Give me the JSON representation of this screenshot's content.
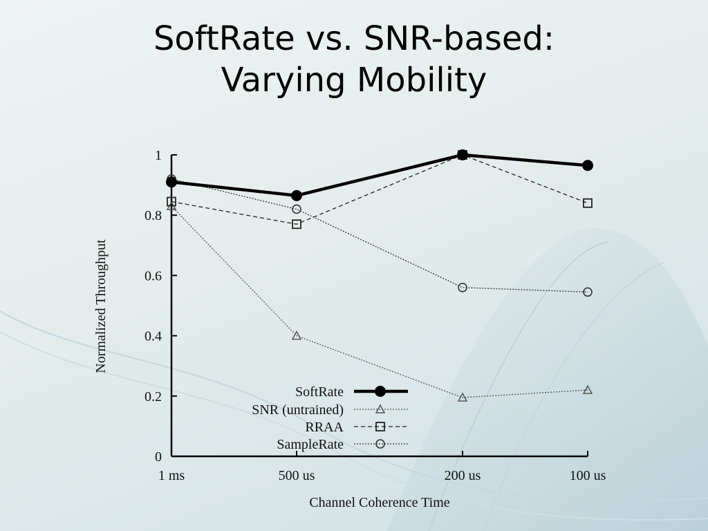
{
  "slide": {
    "title_line1": "SoftRate vs. SNR-based:",
    "title_line2": "Varying Mobility"
  },
  "chart_data": {
    "type": "line",
    "xlabel": "Channel Coherence Time",
    "ylabel": "Normalized Throughput",
    "categories": [
      "1 ms",
      "500 us",
      "200 us",
      "100 us"
    ],
    "ylim": [
      0,
      1
    ],
    "yticks": [
      "0",
      "0.2",
      "0.4",
      "0.6",
      "0.8",
      "1"
    ],
    "grid": false,
    "legend_position": "bottom-center",
    "series": [
      {
        "name": "SoftRate",
        "marker": "filled-circle",
        "dash": "solid",
        "color": "#000000",
        "values": [
          0.91,
          0.865,
          1.0,
          0.965
        ]
      },
      {
        "name": "SNR (untrained)",
        "marker": "triangle",
        "dash": "dotted",
        "color": "#555555",
        "values": [
          0.83,
          0.4,
          0.195,
          0.22
        ]
      },
      {
        "name": "RRAA",
        "marker": "square",
        "dash": "dashed",
        "color": "#222222",
        "values": [
          0.845,
          0.77,
          1.0,
          0.84
        ]
      },
      {
        "name": "SampleRate",
        "marker": "circle",
        "dash": "dotted",
        "color": "#333333",
        "values": [
          0.92,
          0.82,
          0.56,
          0.545
        ]
      }
    ]
  }
}
